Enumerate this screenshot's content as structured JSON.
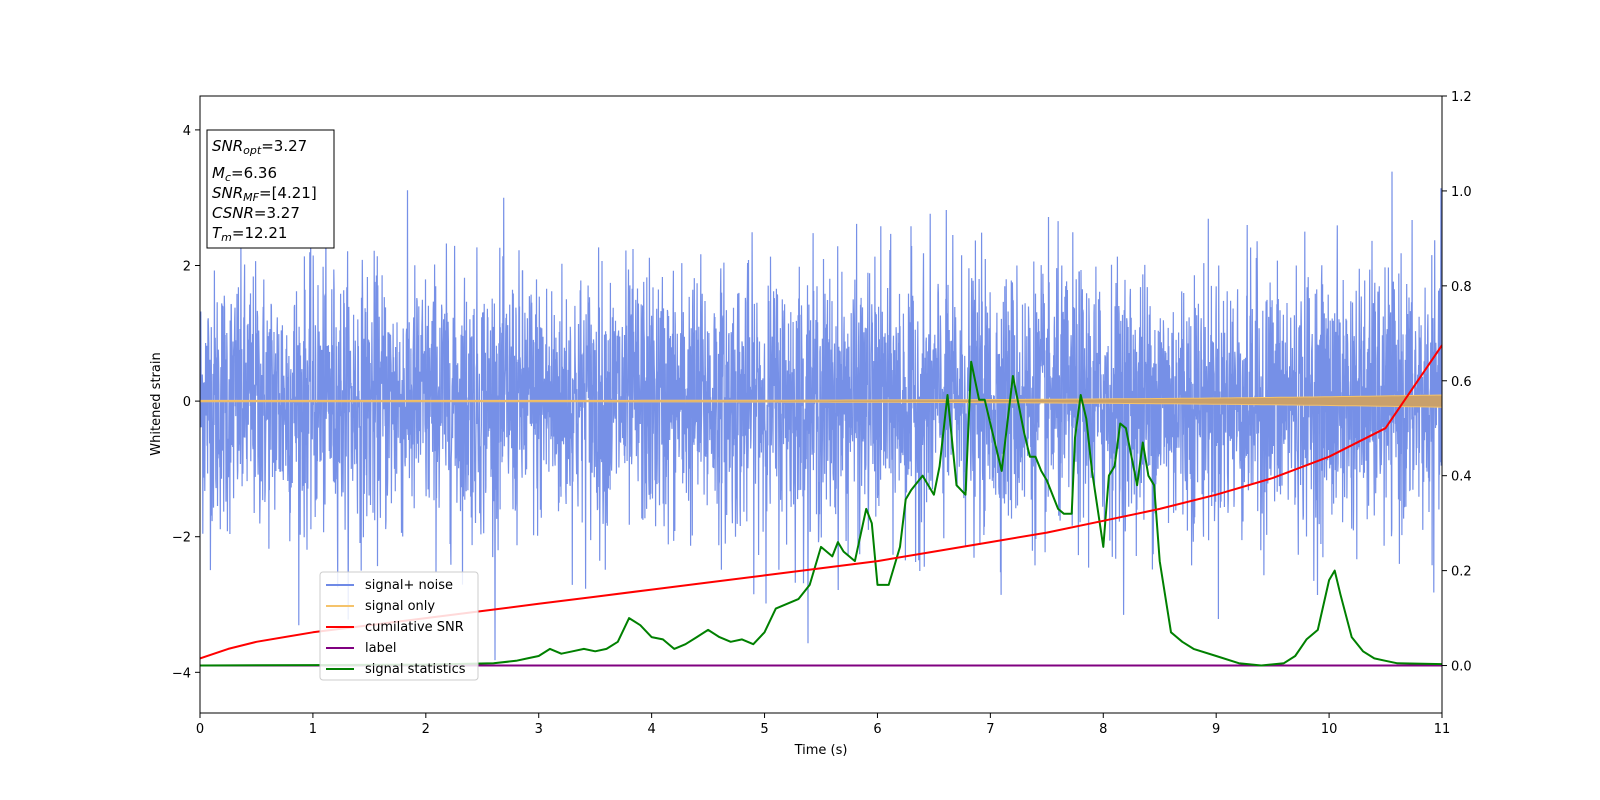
{
  "chart_data": {
    "type": "line",
    "xlabel": "Time (s)",
    "ylabel": "Whitened strain",
    "xlim": [
      0,
      11
    ],
    "ylim": [
      -4.6,
      4.5
    ],
    "y2lim": [
      -0.1,
      1.2
    ],
    "x_ticks": [
      "0",
      "1",
      "2",
      "3",
      "4",
      "5",
      "6",
      "7",
      "8",
      "9",
      "10",
      "11"
    ],
    "y_ticks": [
      "−4",
      "−2",
      "0",
      "2",
      "4"
    ],
    "y2_ticks": [
      "0.0",
      "0.2",
      "0.4",
      "0.6",
      "0.8",
      "1.0",
      "1.2"
    ],
    "grid": false,
    "legend_position": "lower-left",
    "info_box": {
      "snr_opt": "=3.27",
      "mc": "=6.36",
      "snr_mf": "=[4.21]",
      "csnr": "=3.27",
      "tm": "=12.21"
    },
    "series": [
      {
        "name": "signal+ noise",
        "color": "#6f8ae6",
        "axis": "left",
        "kind": "gaussian-noise",
        "mean": 0,
        "std": 0.95,
        "min": -4.15,
        "max": 4.08
      },
      {
        "name": "signal only",
        "color": "#f5c36b",
        "axis": "left",
        "kind": "chirp",
        "amplitude_start": 0.01,
        "amplitude_end": 0.09
      },
      {
        "name": "cumilative SNR",
        "color": "#ff0000",
        "axis": "right",
        "x": [
          0,
          0.25,
          0.5,
          1,
          1.5,
          2,
          2.5,
          3,
          3.5,
          4,
          4.5,
          5,
          5.5,
          6,
          6.5,
          7,
          7.5,
          8,
          8.5,
          9,
          9.5,
          10,
          10.5,
          11
        ],
        "y": [
          0.015,
          0.035,
          0.05,
          0.07,
          0.085,
          0.1,
          0.115,
          0.13,
          0.145,
          0.16,
          0.175,
          0.19,
          0.205,
          0.22,
          0.24,
          0.26,
          0.28,
          0.305,
          0.33,
          0.36,
          0.395,
          0.44,
          0.5,
          0.675
        ]
      },
      {
        "name": "label",
        "color": "#800080",
        "axis": "right",
        "x": [
          0,
          11
        ],
        "y": [
          0,
          0
        ]
      },
      {
        "name": "signal statistics",
        "color": "#008000",
        "axis": "right",
        "x": [
          0,
          1,
          2,
          2.6,
          2.8,
          2.9,
          3.0,
          3.1,
          3.2,
          3.3,
          3.4,
          3.5,
          3.6,
          3.7,
          3.8,
          3.9,
          4.0,
          4.1,
          4.2,
          4.3,
          4.4,
          4.5,
          4.6,
          4.7,
          4.8,
          4.9,
          5.0,
          5.1,
          5.2,
          5.3,
          5.4,
          5.5,
          5.6,
          5.65,
          5.7,
          5.8,
          5.9,
          5.95,
          6.0,
          6.1,
          6.2,
          6.25,
          6.3,
          6.4,
          6.5,
          6.55,
          6.62,
          6.7,
          6.78,
          6.83,
          6.9,
          6.95,
          7.05,
          7.1,
          7.2,
          7.3,
          7.35,
          7.4,
          7.45,
          7.5,
          7.6,
          7.65,
          7.72,
          7.75,
          7.8,
          7.85,
          7.9,
          8.0,
          8.05,
          8.1,
          8.15,
          8.2,
          8.3,
          8.35,
          8.4,
          8.45,
          8.5,
          8.6,
          8.7,
          8.8,
          9.0,
          9.2,
          9.4,
          9.6,
          9.7,
          9.8,
          9.9,
          10.0,
          10.05,
          10.1,
          10.2,
          10.3,
          10.4,
          10.5,
          10.6,
          11.0
        ],
        "y": [
          0,
          0.001,
          0.002,
          0.005,
          0.01,
          0.015,
          0.02,
          0.035,
          0.025,
          0.03,
          0.035,
          0.03,
          0.035,
          0.05,
          0.1,
          0.085,
          0.06,
          0.055,
          0.035,
          0.045,
          0.06,
          0.075,
          0.06,
          0.05,
          0.055,
          0.045,
          0.07,
          0.12,
          0.13,
          0.14,
          0.17,
          0.25,
          0.23,
          0.26,
          0.24,
          0.22,
          0.33,
          0.3,
          0.17,
          0.17,
          0.25,
          0.35,
          0.37,
          0.4,
          0.36,
          0.42,
          0.57,
          0.38,
          0.36,
          0.64,
          0.56,
          0.56,
          0.46,
          0.41,
          0.61,
          0.49,
          0.44,
          0.44,
          0.41,
          0.39,
          0.33,
          0.32,
          0.32,
          0.48,
          0.57,
          0.52,
          0.41,
          0.25,
          0.4,
          0.42,
          0.51,
          0.5,
          0.38,
          0.47,
          0.4,
          0.38,
          0.22,
          0.07,
          0.05,
          0.035,
          0.02,
          0.005,
          0.0,
          0.005,
          0.02,
          0.055,
          0.075,
          0.18,
          0.2,
          0.15,
          0.06,
          0.03,
          0.015,
          0.01,
          0.005,
          0.003
        ]
      }
    ]
  }
}
